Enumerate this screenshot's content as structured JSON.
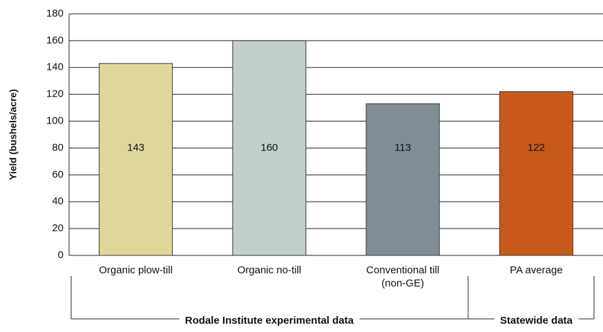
{
  "chart_data": {
    "type": "bar",
    "y_label": "Yield (bushels/acre)",
    "categories": [
      "Organic plow-till",
      "Organic no-till",
      "Conventional till\n(non-GE)",
      "PA average"
    ],
    "values": [
      143,
      160,
      113,
      122
    ],
    "colors": [
      "#e0d69a",
      "#c1cfcd",
      "#808d96",
      "#c75a1a"
    ],
    "ylim": [
      0,
      180
    ],
    "yticks": [
      0,
      20,
      40,
      60,
      80,
      100,
      120,
      140,
      160,
      180
    ],
    "grid": true,
    "groups": [
      "Rodale Institute experimental data",
      "Statewide data"
    ]
  }
}
